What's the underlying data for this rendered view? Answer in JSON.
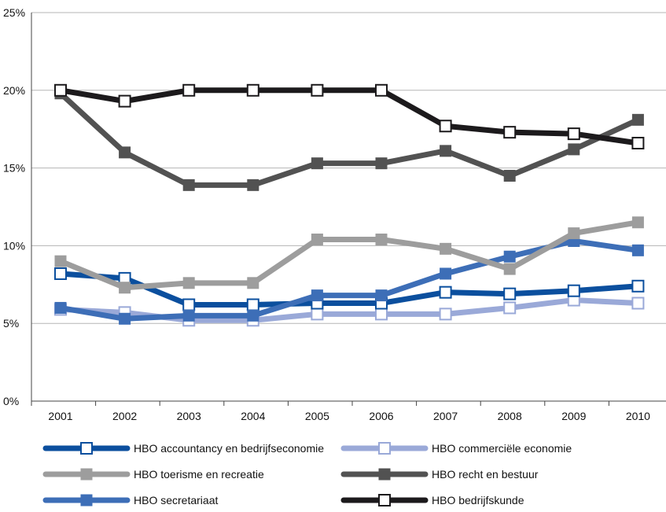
{
  "chart_data": {
    "type": "line",
    "x": [
      "2001",
      "2002",
      "2003",
      "2004",
      "2005",
      "2006",
      "2007",
      "2008",
      "2009",
      "2010"
    ],
    "y_ticks": [
      "0%",
      "5%",
      "10%",
      "15%",
      "20%",
      "25%"
    ],
    "ylim": [
      0,
      25
    ],
    "grid": "horizontal",
    "legend_position": "bottom",
    "series": [
      {
        "name": "HBO accountancy en bedrijfseconomie",
        "color": "#0b4f9e",
        "marker": "open-square",
        "values": [
          8.2,
          7.9,
          6.2,
          6.2,
          6.3,
          6.3,
          7.0,
          6.9,
          7.1,
          7.4
        ]
      },
      {
        "name": "HBO commerciële economie",
        "color": "#9aa9d8",
        "marker": "open-square",
        "values": [
          5.9,
          5.7,
          5.2,
          5.2,
          5.6,
          5.6,
          5.6,
          6.0,
          6.5,
          6.3
        ]
      },
      {
        "name": "HBO toerisme en recreatie",
        "color": "#9d9d9d",
        "marker": "filled-square",
        "values": [
          9.0,
          7.3,
          7.6,
          7.6,
          10.4,
          10.4,
          9.8,
          8.5,
          10.8,
          11.5
        ]
      },
      {
        "name": "HBO recht en bestuur",
        "color": "#525252",
        "marker": "filled-square",
        "values": [
          19.8,
          16.0,
          13.9,
          13.9,
          15.3,
          15.3,
          16.1,
          14.5,
          16.2,
          18.1
        ]
      },
      {
        "name": "HBO secretariaat",
        "color": "#3d6eb7",
        "marker": "filled-square",
        "values": [
          6.0,
          5.3,
          5.5,
          5.5,
          6.8,
          6.8,
          8.2,
          9.3,
          10.3,
          9.7
        ]
      },
      {
        "name": "HBO bedrijfskunde",
        "color": "#1c1a1c",
        "marker": "open-square",
        "values": [
          20.0,
          19.3,
          20.0,
          20.0,
          20.0,
          20.0,
          17.7,
          17.3,
          17.2,
          16.6
        ]
      }
    ]
  }
}
